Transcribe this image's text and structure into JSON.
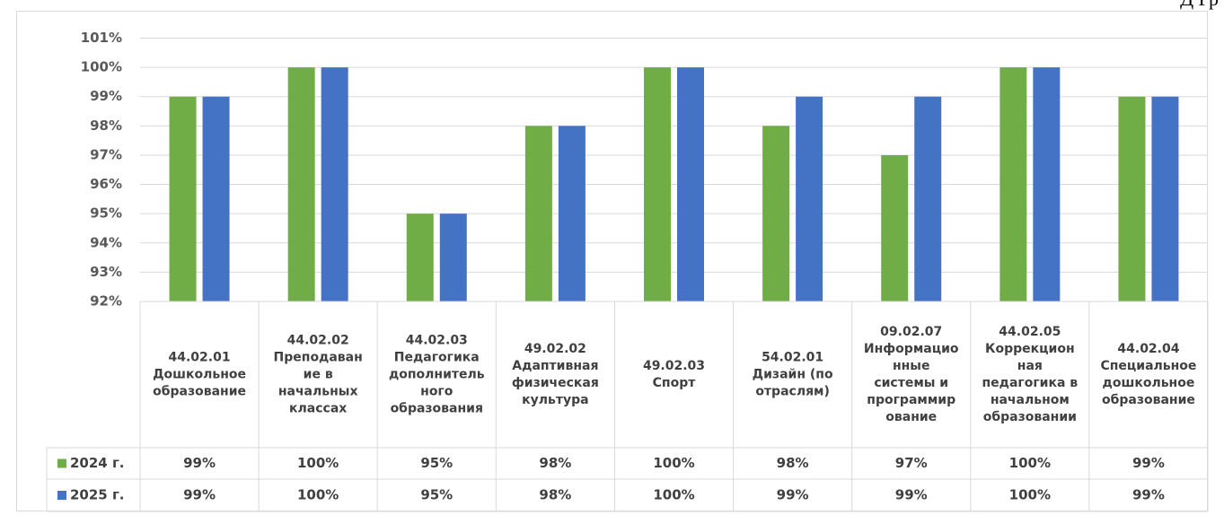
{
  "top_fragment": "Д  Гр",
  "chart_data": {
    "type": "bar",
    "title": "",
    "xlabel": "",
    "ylabel": "",
    "ylim": [
      92,
      101
    ],
    "y_ticks": [
      "92%",
      "93%",
      "94%",
      "95%",
      "96%",
      "97%",
      "98%",
      "99%",
      "100%",
      "101%"
    ],
    "grid": true,
    "legend_placement": "data-table",
    "categories": [
      [
        "44.02.01",
        "Дошкольное",
        "образование"
      ],
      [
        "44.02.02",
        "Преподаван",
        "ие в",
        "начальных",
        "классах"
      ],
      [
        "44.02.03",
        "Педагогика",
        "дополнитель",
        "ного",
        "образования"
      ],
      [
        "49.02.02",
        "Адаптивная",
        "физическая",
        "культура"
      ],
      [
        "49.02.03",
        "Спорт"
      ],
      [
        "54.02.01",
        "Дизайн (по",
        "отраслям)"
      ],
      [
        "09.02.07",
        "Информацио",
        "нные",
        "системы и",
        "программир",
        "ование"
      ],
      [
        "44.02.05",
        "Коррекцион",
        "ная",
        "педагогика в",
        "начальном",
        "образовании"
      ],
      [
        "44.02.04",
        "Специальное",
        "дошкольное",
        "образование"
      ]
    ],
    "series": [
      {
        "name": "2024 г.",
        "color": "#70ad47",
        "values": [
          99,
          100,
          95,
          98,
          100,
          98,
          97,
          100,
          99
        ],
        "labels": [
          "99%",
          "100%",
          "95%",
          "98%",
          "100%",
          "98%",
          "97%",
          "100%",
          "99%"
        ]
      },
      {
        "name": "2025 г.",
        "color": "#4472c4",
        "values": [
          99,
          100,
          95,
          98,
          100,
          99,
          99,
          100,
          99
        ],
        "labels": [
          "99%",
          "100%",
          "95%",
          "98%",
          "100%",
          "99%",
          "99%",
          "100%",
          "99%"
        ]
      }
    ]
  }
}
